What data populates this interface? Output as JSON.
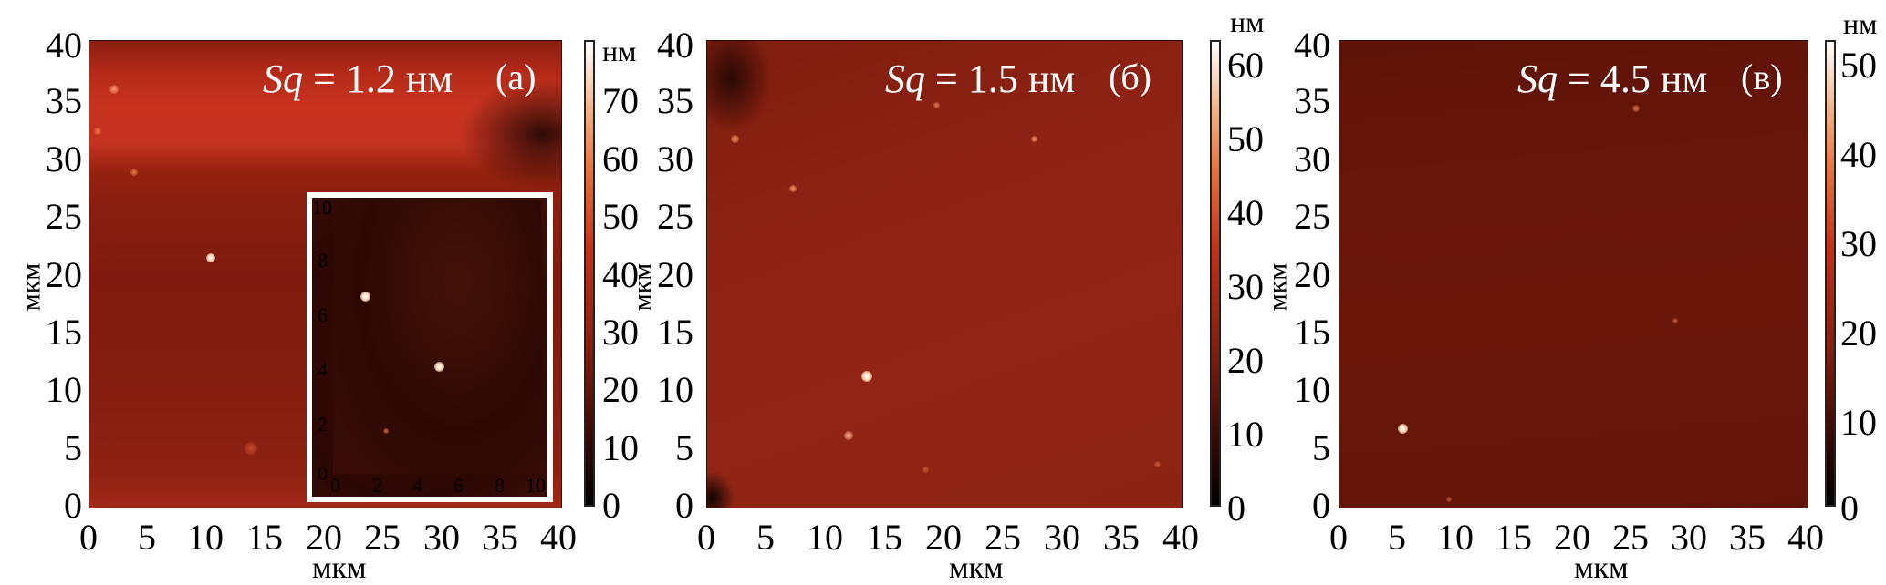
{
  "panels": [
    {
      "letter": "(a)",
      "sq_symbol": "Sq",
      "sq_text": " = 1.2 нм",
      "x_ticks": [
        "0",
        "5",
        "10",
        "15",
        "20",
        "25",
        "30",
        "35",
        "40"
      ],
      "y_ticks": [
        "40",
        "35",
        "30",
        "25",
        "20",
        "15",
        "10",
        "5",
        "0"
      ],
      "x_label": "мкм",
      "y_label": "мкм",
      "cb_unit": "нм",
      "cb_ticks": [
        "70",
        "60",
        "50",
        "40",
        "30",
        "20",
        "10",
        "0"
      ],
      "cb_unit_inline": true,
      "inset": {
        "x_ticks": [
          "0",
          "2",
          "4",
          "6",
          "8",
          "10"
        ],
        "y_ticks": [
          "10",
          "8",
          "6",
          "4",
          "2",
          "0"
        ]
      },
      "colors": {
        "base": "#8a1f12",
        "band": "#c63220"
      }
    },
    {
      "letter": "(б)",
      "sq_symbol": "Sq",
      "sq_text": " = 1.5 нм",
      "x_ticks": [
        "0",
        "5",
        "10",
        "15",
        "20",
        "25",
        "30",
        "35",
        "40"
      ],
      "y_ticks": [
        "40",
        "35",
        "30",
        "25",
        "20",
        "15",
        "10",
        "5",
        "0"
      ],
      "x_label": "мкм",
      "y_label": "мкм",
      "cb_unit": "нм",
      "cb_ticks": [
        "60",
        "50",
        "40",
        "30",
        "20",
        "10",
        "0"
      ],
      "cb_unit_inline": false,
      "colors": {
        "base": "#8e2414"
      }
    },
    {
      "letter": "(в)",
      "sq_symbol": "Sq",
      "sq_text": " = 4.5 нм",
      "x_ticks": [
        "0",
        "5",
        "10",
        "15",
        "20",
        "25",
        "30",
        "35",
        "40"
      ],
      "y_ticks": [
        "40",
        "35",
        "30",
        "25",
        "20",
        "15",
        "10",
        "5",
        "0"
      ],
      "x_label": "мкм",
      "y_label": "мкм",
      "cb_unit": "нм",
      "cb_ticks": [
        "50",
        "40",
        "30",
        "20",
        "10",
        "0"
      ],
      "cb_unit_inline": false,
      "colors": {
        "base": "#651509"
      }
    }
  ]
}
